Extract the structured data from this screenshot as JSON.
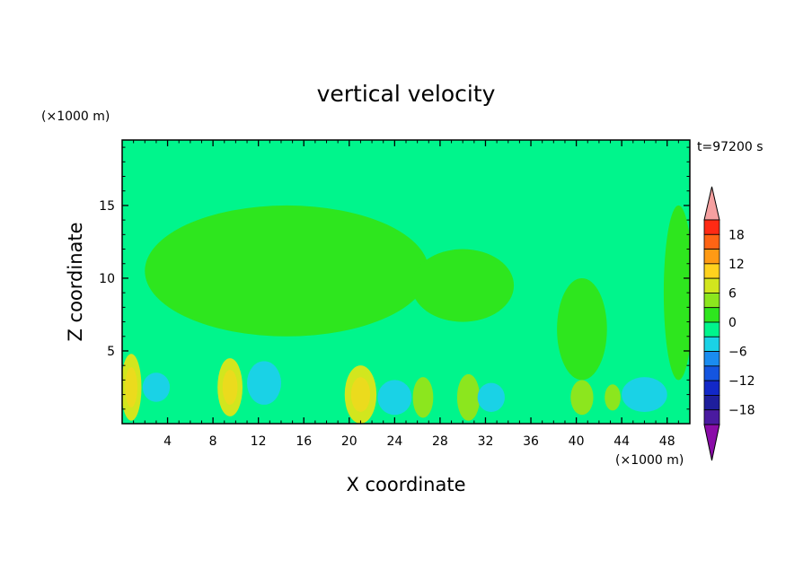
{
  "chart_data": {
    "type": "heatmap",
    "title": "vertical velocity",
    "xlabel": "X coordinate",
    "ylabel": "Z coordinate",
    "x_unit": "(×1000 m)",
    "y_unit": "(×1000 m)",
    "time_label": "t=97200 s",
    "xlim": [
      0,
      50
    ],
    "ylim": [
      0,
      19.5
    ],
    "x_ticks": [
      4,
      8,
      12,
      16,
      20,
      24,
      28,
      32,
      36,
      40,
      44,
      48
    ],
    "y_ticks": [
      5,
      10,
      15
    ],
    "background_level": 0,
    "levels": [
      -21,
      -18,
      -15,
      -12,
      -9,
      -6,
      -3,
      0,
      3,
      6,
      9,
      12,
      15,
      18,
      21
    ],
    "colorbar_labels": [
      18,
      12,
      6,
      0,
      -6,
      -12,
      -18
    ],
    "colorbar_colors": [
      "#8a0ca8",
      "#4a1aa0",
      "#1e1e9c",
      "#1228c8",
      "#1455e0",
      "#1a8cf0",
      "#1ad2e6",
      "#00f58c",
      "#2ee61e",
      "#8ce61e",
      "#d2e61e",
      "#ffd21e",
      "#ff9a14",
      "#ff6414",
      "#ff2a14",
      "#f5a0a0"
    ],
    "features": [
      {
        "kind": "updraft",
        "x": 14.5,
        "z": 10.5,
        "rx": 12.5,
        "rz": 4.5,
        "level": "weak"
      },
      {
        "kind": "updraft",
        "x": 30,
        "z": 9.5,
        "rx": 4.5,
        "rz": 2.5,
        "level": "weak"
      },
      {
        "kind": "updraft",
        "x": 40.5,
        "z": 6.5,
        "rx": 2.2,
        "rz": 3.5,
        "level": "weak"
      },
      {
        "kind": "updraft",
        "x": 49,
        "z": 9,
        "rx": 1.3,
        "rz": 6,
        "level": "weak"
      },
      {
        "kind": "updraft",
        "x": 0.8,
        "z": 2.5,
        "rx": 0.9,
        "rz": 2.3,
        "level": "strong"
      },
      {
        "kind": "updraft",
        "x": 9.5,
        "z": 2.5,
        "rx": 1.1,
        "rz": 2.0,
        "level": "strong"
      },
      {
        "kind": "updraft",
        "x": 21,
        "z": 2.0,
        "rx": 1.4,
        "rz": 2.0,
        "level": "strong"
      },
      {
        "kind": "updraft",
        "x": 26.5,
        "z": 1.8,
        "rx": 0.9,
        "rz": 1.4,
        "level": "moderate"
      },
      {
        "kind": "updraft",
        "x": 30.5,
        "z": 1.8,
        "rx": 1.0,
        "rz": 1.6,
        "level": "moderate"
      },
      {
        "kind": "updraft",
        "x": 40.5,
        "z": 1.8,
        "rx": 1.0,
        "rz": 1.2,
        "level": "moderate"
      },
      {
        "kind": "updraft",
        "x": 43.2,
        "z": 1.8,
        "rx": 0.7,
        "rz": 0.9,
        "level": "moderate"
      },
      {
        "kind": "downdraft",
        "x": 12.5,
        "z": 2.8,
        "rx": 1.5,
        "rz": 1.5,
        "level": "weak"
      },
      {
        "kind": "downdraft",
        "x": 3,
        "z": 2.5,
        "rx": 1.2,
        "rz": 1.0,
        "level": "weak"
      },
      {
        "kind": "downdraft",
        "x": 24,
        "z": 1.8,
        "rx": 1.5,
        "rz": 1.2,
        "level": "weak"
      },
      {
        "kind": "downdraft",
        "x": 32.5,
        "z": 1.8,
        "rx": 1.2,
        "rz": 1.0,
        "level": "weak"
      },
      {
        "kind": "downdraft",
        "x": 46,
        "z": 2.0,
        "rx": 2.0,
        "rz": 1.2,
        "level": "weak"
      }
    ]
  }
}
